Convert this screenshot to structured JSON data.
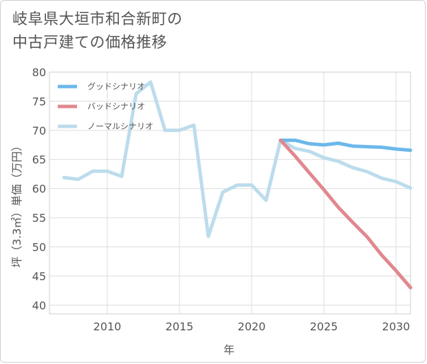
{
  "chart_data": {
    "type": "line",
    "title_lines": [
      "岐阜県大垣市和合新町の",
      "中古戸建ての価格推移"
    ],
    "xlabel": "年",
    "ylabel": "坪（3.3㎡）単価（万円）",
    "xlim": [
      2006,
      2031
    ],
    "ylim": [
      38.5,
      80
    ],
    "x_ticks": [
      2010,
      2015,
      2020,
      2025,
      2030
    ],
    "y_ticks": [
      40,
      45,
      50,
      55,
      60,
      65,
      70,
      75,
      80
    ],
    "grid": true,
    "legend_position": "top-left",
    "series": [
      {
        "name": "グッドシナリオ",
        "color": "#6cb8ea",
        "x": [
          2022,
          2023,
          2024,
          2025,
          2026,
          2027,
          2028,
          2029,
          2030,
          2031
        ],
        "values": [
          68.3,
          68.3,
          67.7,
          67.5,
          67.8,
          67.3,
          67.2,
          67.1,
          66.8,
          66.6
        ]
      },
      {
        "name": "バッドシナリオ",
        "color": "#e0888f",
        "x": [
          2022,
          2023,
          2024,
          2025,
          2026,
          2027,
          2028,
          2029,
          2030,
          2031
        ],
        "values": [
          68.3,
          65.6,
          62.7,
          59.8,
          56.8,
          54.2,
          51.7,
          48.6,
          45.9,
          43.0
        ]
      },
      {
        "name": "ノーマルシナリオ",
        "color": "#bcdcec",
        "x": [
          2007,
          2008,
          2009,
          2010,
          2011,
          2012,
          2013,
          2014,
          2015,
          2016,
          2017,
          2018,
          2019,
          2020,
          2021,
          2022,
          2023,
          2024,
          2025,
          2026,
          2027,
          2028,
          2029,
          2030,
          2031
        ],
        "values": [
          61.9,
          61.6,
          63.0,
          63.0,
          62.1,
          76.3,
          78.3,
          70.0,
          70.0,
          70.9,
          51.8,
          59.4,
          60.6,
          60.6,
          58.0,
          68.3,
          66.9,
          66.4,
          65.3,
          64.7,
          63.6,
          62.9,
          61.8,
          61.2,
          60.1
        ]
      }
    ]
  }
}
